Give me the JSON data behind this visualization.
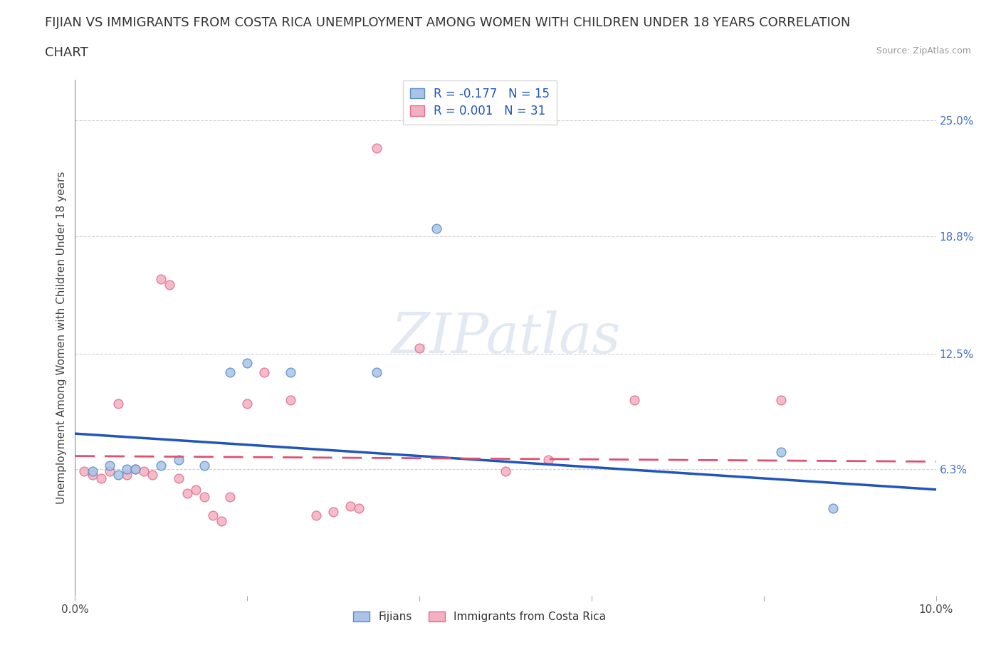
{
  "title_line1": "FIJIAN VS IMMIGRANTS FROM COSTA RICA UNEMPLOYMENT AMONG WOMEN WITH CHILDREN UNDER 18 YEARS CORRELATION",
  "title_line2": "CHART",
  "source": "Source: ZipAtlas.com",
  "ylabel": "Unemployment Among Women with Children Under 18 years",
  "xlim": [
    0.0,
    0.1
  ],
  "ylim": [
    -0.005,
    0.272
  ],
  "xticks": [
    0.0,
    0.02,
    0.04,
    0.06,
    0.08,
    0.1
  ],
  "ytick_right_vals": [
    0.063,
    0.125,
    0.188,
    0.25
  ],
  "ytick_right_labels": [
    "6.3%",
    "12.5%",
    "18.8%",
    "25.0%"
  ],
  "background_color": "#ffffff",
  "grid_color": "#d0d0d0",
  "fijian_color": "#aac4e8",
  "fijian_edge_color": "#5b8ec7",
  "costa_rica_color": "#f4afc0",
  "costa_rica_edge_color": "#e07090",
  "trend_fijian_color": "#2255bb",
  "trend_costa_rica_color": "#e05070",
  "legend_R_fijian": "R = -0.177",
  "legend_N_fijian": "N = 15",
  "legend_R_costa": "R = 0.001",
  "legend_N_costa": "N = 31",
  "fijian_x": [
    0.002,
    0.004,
    0.005,
    0.006,
    0.007,
    0.01,
    0.012,
    0.015,
    0.018,
    0.02,
    0.025,
    0.035,
    0.042,
    0.082,
    0.088
  ],
  "fijian_y": [
    0.062,
    0.065,
    0.06,
    0.063,
    0.063,
    0.065,
    0.068,
    0.065,
    0.115,
    0.12,
    0.115,
    0.115,
    0.192,
    0.072,
    0.042
  ],
  "costa_rica_x": [
    0.001,
    0.002,
    0.003,
    0.004,
    0.005,
    0.006,
    0.007,
    0.008,
    0.009,
    0.01,
    0.011,
    0.012,
    0.013,
    0.014,
    0.015,
    0.016,
    0.017,
    0.018,
    0.02,
    0.022,
    0.025,
    0.028,
    0.03,
    0.032,
    0.033,
    0.035,
    0.04,
    0.05,
    0.055,
    0.065,
    0.082
  ],
  "costa_rica_y": [
    0.062,
    0.06,
    0.058,
    0.062,
    0.098,
    0.06,
    0.063,
    0.062,
    0.06,
    0.165,
    0.162,
    0.058,
    0.05,
    0.052,
    0.048,
    0.038,
    0.035,
    0.048,
    0.098,
    0.115,
    0.1,
    0.038,
    0.04,
    0.043,
    0.042,
    0.235,
    0.128,
    0.062,
    0.068,
    0.1,
    0.1
  ],
  "marker_size": 85,
  "title_fontsize": 13,
  "axis_label_fontsize": 11,
  "tick_fontsize": 11,
  "watermark": "ZIPatlas"
}
